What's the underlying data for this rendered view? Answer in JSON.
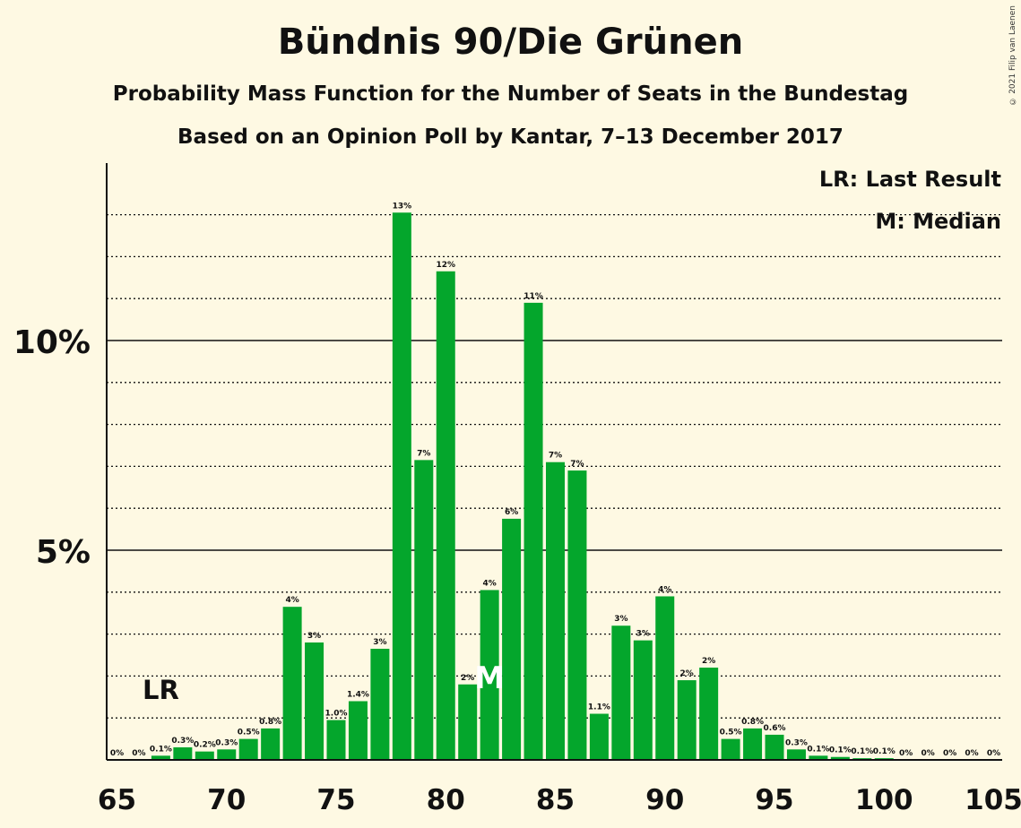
{
  "title": "Bündnis 90/Die Grünen",
  "subtitle": "Probability Mass Function for the Number of Seats in the Bundestag",
  "subtitle2": "Based on an Opinion Poll by Kantar, 7–13 December 2017",
  "copyright": "© 2021 Filip van Laenen",
  "legend": {
    "last_result": "LR: Last Result",
    "median": "M: Median"
  },
  "colors": {
    "bar": "#04a62c",
    "background": "#fef9e3",
    "text": "#111111"
  },
  "chart_data": {
    "type": "bar",
    "x_ticks": [
      65,
      70,
      75,
      80,
      85,
      90,
      95,
      100,
      105
    ],
    "y_ticks": [
      {
        "value": 5,
        "label": "5%"
      },
      {
        "value": 10,
        "label": "10%"
      }
    ],
    "ylim": [
      0,
      14
    ],
    "xlim": [
      65,
      105
    ],
    "last_result_seat": 67,
    "last_result_marker": "LR",
    "median_seat": 82,
    "median_marker": "M",
    "bars": [
      {
        "seat": 65,
        "value": 0,
        "label": "0%"
      },
      {
        "seat": 66,
        "value": 0,
        "label": "0%"
      },
      {
        "seat": 67,
        "value": 0.1,
        "label": "0.1%"
      },
      {
        "seat": 68,
        "value": 0.3,
        "label": "0.3%"
      },
      {
        "seat": 69,
        "value": 0.2,
        "label": "0.2%"
      },
      {
        "seat": 70,
        "value": 0.25,
        "label": "0.3%"
      },
      {
        "seat": 71,
        "value": 0.5,
        "label": "0.5%"
      },
      {
        "seat": 72,
        "value": 0.75,
        "label": "0.8%"
      },
      {
        "seat": 73,
        "value": 3.65,
        "label": "4%"
      },
      {
        "seat": 74,
        "value": 2.8,
        "label": "3%"
      },
      {
        "seat": 75,
        "value": 0.95,
        "label": "1.0%"
      },
      {
        "seat": 76,
        "value": 1.4,
        "label": "1.4%"
      },
      {
        "seat": 77,
        "value": 2.65,
        "label": "3%"
      },
      {
        "seat": 78,
        "value": 13.05,
        "label": "13%"
      },
      {
        "seat": 79,
        "value": 7.15,
        "label": "7%"
      },
      {
        "seat": 80,
        "value": 11.65,
        "label": "12%"
      },
      {
        "seat": 81,
        "value": 1.8,
        "label": "2%"
      },
      {
        "seat": 82,
        "value": 4.05,
        "label": "4%"
      },
      {
        "seat": 83,
        "value": 5.75,
        "label": "6%"
      },
      {
        "seat": 84,
        "value": 10.9,
        "label": "11%"
      },
      {
        "seat": 85,
        "value": 7.1,
        "label": "7%"
      },
      {
        "seat": 86,
        "value": 6.9,
        "label": "7%"
      },
      {
        "seat": 87,
        "value": 1.1,
        "label": "1.1%"
      },
      {
        "seat": 88,
        "value": 3.2,
        "label": "3%"
      },
      {
        "seat": 89,
        "value": 2.85,
        "label": "3%"
      },
      {
        "seat": 90,
        "value": 3.9,
        "label": "4%"
      },
      {
        "seat": 91,
        "value": 1.9,
        "label": "2%"
      },
      {
        "seat": 92,
        "value": 2.2,
        "label": "2%"
      },
      {
        "seat": 93,
        "value": 0.5,
        "label": "0.5%"
      },
      {
        "seat": 94,
        "value": 0.75,
        "label": "0.8%"
      },
      {
        "seat": 95,
        "value": 0.6,
        "label": "0.6%"
      },
      {
        "seat": 96,
        "value": 0.25,
        "label": "0.3%"
      },
      {
        "seat": 97,
        "value": 0.1,
        "label": "0.1%"
      },
      {
        "seat": 98,
        "value": 0.07,
        "label": "0.1%"
      },
      {
        "seat": 99,
        "value": 0.04,
        "label": "0.1%"
      },
      {
        "seat": 100,
        "value": 0.04,
        "label": "0.1%"
      },
      {
        "seat": 101,
        "value": 0,
        "label": "0%"
      },
      {
        "seat": 102,
        "value": 0,
        "label": "0%"
      },
      {
        "seat": 103,
        "value": 0,
        "label": "0%"
      },
      {
        "seat": 104,
        "value": 0,
        "label": "0%"
      },
      {
        "seat": 105,
        "value": 0,
        "label": "0%"
      }
    ]
  }
}
